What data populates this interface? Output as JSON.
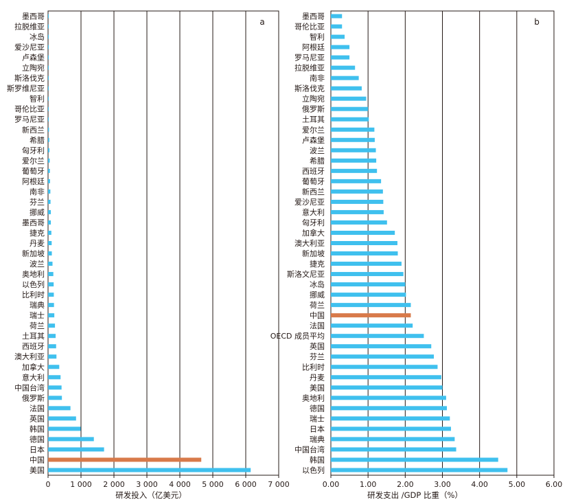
{
  "colors": {
    "bar": "#3fc0ee",
    "highlight": "#d87a4a",
    "grid": "#231815",
    "frame": "#231815"
  },
  "chart_data": [
    {
      "type": "bar",
      "orientation": "horizontal",
      "panel_label": "a",
      "xlabel": "研发投入（亿美元）",
      "xlim": [
        0,
        7000
      ],
      "xticks": [
        "0",
        "1 000",
        "2 000",
        "3 000",
        "4 000",
        "5 000",
        "6 000",
        "7 000"
      ],
      "xtick_values": [
        0,
        1000,
        2000,
        3000,
        4000,
        5000,
        6000,
        7000
      ],
      "grid": "vertical",
      "highlight_category": "中国",
      "categories": [
        "墨西哥",
        "拉脱维亚",
        "冰岛",
        "爱沙尼亚",
        "卢森堡",
        "立陶宛",
        "斯洛伐克",
        "斯罗维尼亚",
        "智利",
        "哥伦比亚",
        "罗马尼亚",
        "新西兰",
        "希腊",
        "匈牙利",
        "爱尔兰",
        "葡萄牙",
        "阿根廷",
        "南非",
        "芬兰",
        "挪威",
        "墨西哥",
        "捷克",
        "丹麦",
        "新加坡",
        "波兰",
        "奥地利",
        "以色列",
        "比利时",
        "瑞典",
        "瑞士",
        "荷兰",
        "土耳其",
        "西班牙",
        "澳大利亚",
        "加拿大",
        "意大利",
        "中国台湾",
        "俄罗斯",
        "法国",
        "英国",
        "韩国",
        "德国",
        "日本",
        "中国",
        "美国"
      ],
      "values": [
        2,
        3,
        3,
        3,
        4,
        5,
        12,
        12,
        16,
        18,
        22,
        30,
        38,
        42,
        50,
        55,
        60,
        70,
        75,
        85,
        85,
        100,
        110,
        115,
        135,
        160,
        170,
        175,
        180,
        190,
        210,
        230,
        245,
        255,
        340,
        380,
        410,
        420,
        680,
        850,
        990,
        1390,
        1700,
        4650,
        6150
      ]
    },
    {
      "type": "bar",
      "orientation": "horizontal",
      "panel_label": "b",
      "xlabel": "研发支出 /GDP 比重（%）",
      "xlim": [
        0,
        6
      ],
      "xticks": [
        "0.00",
        "1.00",
        "2.00",
        "3.00",
        "4.00",
        "5.00",
        "6.00"
      ],
      "xtick_values": [
        0,
        1,
        2,
        3,
        4,
        5,
        6
      ],
      "grid": "vertical",
      "highlight_category": "中国",
      "categories": [
        "墨西哥",
        "哥伦比亚",
        "智利",
        "阿根廷",
        "罗马尼亚",
        "拉脱维亚",
        "南非",
        "斯洛伐克",
        "立陶宛",
        "俄罗斯",
        "土耳其",
        "爱尔兰",
        "卢森堡",
        "波兰",
        "希腊",
        "西班牙",
        "葡萄牙",
        "新西兰",
        "爱沙尼亚",
        "意大利",
        "匈牙利",
        "加拿大",
        "澳大利亚",
        "新加坡",
        "捷克",
        "斯洛文尼亚",
        "冰岛",
        "挪威",
        "荷兰",
        "中国",
        "法国",
        "OECD 成员平均",
        "英国",
        "芬兰",
        "比利时",
        "丹麦",
        "美国",
        "奥地利",
        "德国",
        "瑞士",
        "日本",
        "瑞典",
        "中国台湾",
        "韩国",
        "以色列"
      ],
      "values": [
        0.3,
        0.3,
        0.37,
        0.5,
        0.5,
        0.65,
        0.75,
        0.83,
        0.95,
        1.0,
        1.02,
        1.17,
        1.18,
        1.21,
        1.22,
        1.24,
        1.35,
        1.4,
        1.41,
        1.42,
        1.51,
        1.72,
        1.79,
        1.8,
        1.9,
        1.95,
        2.0,
        2.02,
        2.15,
        2.15,
        2.2,
        2.5,
        2.7,
        2.77,
        2.87,
        2.97,
        3.0,
        3.1,
        3.12,
        3.2,
        3.23,
        3.33,
        3.37,
        4.5,
        4.75
      ]
    }
  ]
}
